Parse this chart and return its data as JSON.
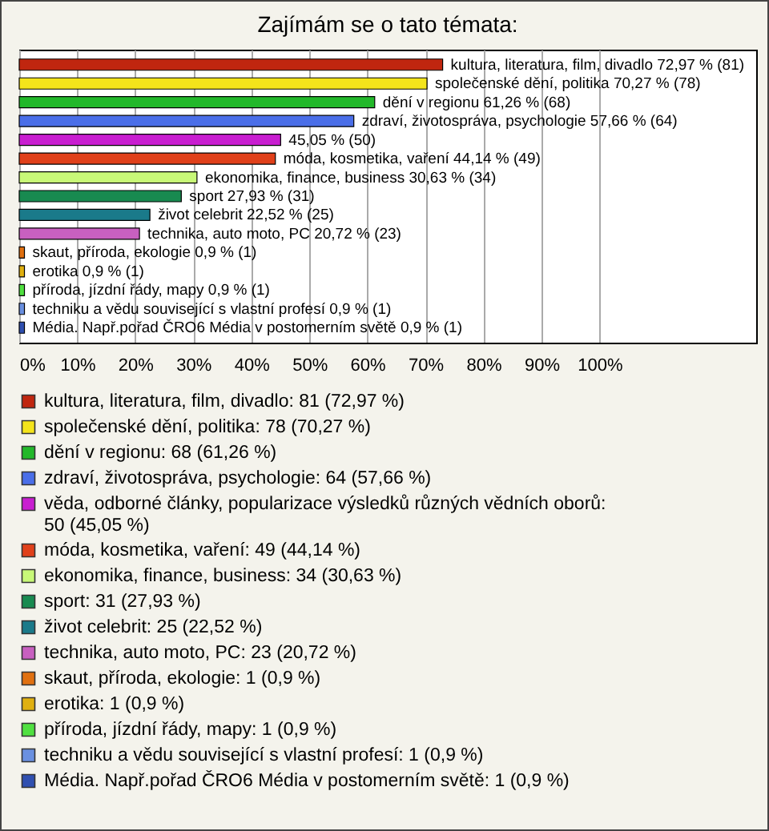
{
  "chart_data": {
    "type": "bar",
    "orientation": "horizontal",
    "stacked": true,
    "title": "Zajímám se o tato témata:",
    "categories": [
      null,
      null,
      null,
      null,
      null,
      null,
      null,
      null,
      null,
      null,
      null,
      null,
      null,
      null,
      null
    ],
    "series": [
      {
        "name": "kultura, literatura, film, divadlo: 81 (72,97 %)",
        "color": "#c0260f",
        "values": [
          72.97,
          null,
          null,
          null,
          null,
          null,
          null,
          null,
          null,
          null,
          null,
          null,
          null,
          null,
          null
        ],
        "value_labels": [
          "kultura, literatura, film, divadlo 72,97 % (81)",
          null,
          null,
          null,
          null,
          null,
          null,
          null,
          null,
          null,
          null,
          null,
          null,
          null,
          null
        ]
      },
      {
        "name": "společenské dění, politika: 78 (70,27 %)",
        "color": "#f4e41b",
        "values": [
          null,
          70.27,
          null,
          null,
          null,
          null,
          null,
          null,
          null,
          null,
          null,
          null,
          null,
          null,
          null
        ],
        "value_labels": [
          null,
          "společenské dění, politika 70,27 % (78)",
          null,
          null,
          null,
          null,
          null,
          null,
          null,
          null,
          null,
          null,
          null,
          null,
          null
        ]
      },
      {
        "name": "dění v regionu: 68 (61,26 %)",
        "color": "#22b82a",
        "values": [
          null,
          null,
          61.26,
          null,
          null,
          null,
          null,
          null,
          null,
          null,
          null,
          null,
          null,
          null,
          null
        ],
        "value_labels": [
          null,
          null,
          "dění v regionu 61,26 % (68)",
          null,
          null,
          null,
          null,
          null,
          null,
          null,
          null,
          null,
          null,
          null,
          null
        ]
      },
      {
        "name": "zdraví, životospráva, psychologie: 64 (57,66 %)",
        "color": "#4a6ee8",
        "values": [
          null,
          null,
          null,
          57.66,
          null,
          null,
          null,
          null,
          null,
          null,
          null,
          null,
          null,
          null,
          null
        ],
        "value_labels": [
          null,
          null,
          null,
          "zdraví, životospráva, psychologie 57,66 % (64)",
          null,
          null,
          null,
          null,
          null,
          null,
          null,
          null,
          null,
          null,
          null
        ]
      },
      {
        "name": "věda, odborné články, popularizace výsledků různých vědních oborů: 50 (45,05 %)",
        "color": "#c81ed0",
        "values": [
          null,
          null,
          null,
          null,
          45.05,
          null,
          null,
          null,
          null,
          null,
          null,
          null,
          null,
          null,
          null
        ],
        "value_labels": [
          null,
          null,
          null,
          null,
          "45,05 % (50)",
          null,
          null,
          null,
          null,
          null,
          null,
          null,
          null,
          null,
          null
        ]
      },
      {
        "name": "móda, kosmetika, vaření: 49 (44,14 %)",
        "color": "#e0401a",
        "values": [
          null,
          null,
          null,
          null,
          null,
          44.14,
          null,
          null,
          null,
          null,
          null,
          null,
          null,
          null,
          null
        ],
        "value_labels": [
          null,
          null,
          null,
          null,
          null,
          "móda, kosmetika, vaření 44,14 % (49)",
          null,
          null,
          null,
          null,
          null,
          null,
          null,
          null,
          null
        ]
      },
      {
        "name": "ekonomika, finance, business: 34 (30,63 %)",
        "color": "#c8f878",
        "values": [
          null,
          null,
          null,
          null,
          null,
          null,
          30.63,
          null,
          null,
          null,
          null,
          null,
          null,
          null,
          null
        ],
        "value_labels": [
          null,
          null,
          null,
          null,
          null,
          null,
          "ekonomika, finance, business 30,63 % (34)",
          null,
          null,
          null,
          null,
          null,
          null,
          null,
          null
        ]
      },
      {
        "name": "sport: 31 (27,93 %)",
        "color": "#188a50",
        "values": [
          null,
          null,
          null,
          null,
          null,
          null,
          null,
          27.93,
          null,
          null,
          null,
          null,
          null,
          null,
          null
        ],
        "value_labels": [
          null,
          null,
          null,
          null,
          null,
          null,
          null,
          "sport 27,93 % (31)",
          null,
          null,
          null,
          null,
          null,
          null,
          null
        ]
      },
      {
        "name": "život celebrit: 25 (22,52 %)",
        "color": "#1a7a8a",
        "values": [
          null,
          null,
          null,
          null,
          null,
          null,
          null,
          null,
          22.52,
          null,
          null,
          null,
          null,
          null,
          null
        ],
        "value_labels": [
          null,
          null,
          null,
          null,
          null,
          null,
          null,
          null,
          "život celebrit 22,52 % (25)",
          null,
          null,
          null,
          null,
          null,
          null
        ]
      },
      {
        "name": "technika, auto moto, PC: 23 (20,72 %)",
        "color": "#c860c0",
        "values": [
          null,
          null,
          null,
          null,
          null,
          null,
          null,
          null,
          null,
          20.72,
          null,
          null,
          null,
          null,
          null
        ],
        "value_labels": [
          null,
          null,
          null,
          null,
          null,
          null,
          null,
          null,
          null,
          "technika, auto moto, PC 20,72 % (23)",
          null,
          null,
          null,
          null,
          null
        ]
      },
      {
        "name": "skaut, příroda, ekologie: 1 (0,9 %)",
        "color": "#e07010",
        "values": [
          null,
          null,
          null,
          null,
          null,
          null,
          null,
          null,
          null,
          null,
          0.9,
          null,
          null,
          null,
          null
        ],
        "value_labels": [
          null,
          null,
          null,
          null,
          null,
          null,
          null,
          null,
          null,
          null,
          "skaut, příroda, ekologie 0,9 % (1)",
          null,
          null,
          null,
          null
        ]
      },
      {
        "name": "erotika: 1 (0,9 %)",
        "color": "#e0b010",
        "values": [
          null,
          null,
          null,
          null,
          null,
          null,
          null,
          null,
          null,
          null,
          null,
          0.9,
          null,
          null,
          null
        ],
        "value_labels": [
          null,
          null,
          null,
          null,
          null,
          null,
          null,
          null,
          null,
          null,
          null,
          "erotika 0,9 % (1)",
          null,
          null,
          null
        ]
      },
      {
        "name": "příroda, jízdní řády, mapy: 1 (0,9 %)",
        "color": "#50e040",
        "values": [
          null,
          null,
          null,
          null,
          null,
          null,
          null,
          null,
          null,
          null,
          null,
          null,
          0.9,
          null,
          null
        ],
        "value_labels": [
          null,
          null,
          null,
          null,
          null,
          null,
          null,
          null,
          null,
          null,
          null,
          null,
          "příroda, jízdní řády, mapy 0,9 % (1)",
          null,
          null
        ]
      },
      {
        "name": "techniku a vědu související s vlastní profesí: 1 (0,9 %)",
        "color": "#6a90e0",
        "values": [
          null,
          null,
          null,
          null,
          null,
          null,
          null,
          null,
          null,
          null,
          null,
          null,
          null,
          0.9,
          null
        ],
        "value_labels": [
          null,
          null,
          null,
          null,
          null,
          null,
          null,
          null,
          null,
          null,
          null,
          null,
          null,
          "techniku a vědu související s vlastní profesí 0,9 % (1)",
          null
        ]
      },
      {
        "name": "Média. Např.pořad ČRO6 Média v postomerním světě: 1 (0,9 %)",
        "color": "#3050b0",
        "values": [
          null,
          null,
          null,
          null,
          null,
          null,
          null,
          null,
          null,
          null,
          null,
          null,
          null,
          null,
          0.9
        ],
        "value_labels": [
          null,
          null,
          null,
          null,
          null,
          null,
          null,
          null,
          null,
          null,
          null,
          null,
          null,
          null,
          "Média. Např.pořad ČRO6 Média v postomerním světě 0,9 % (1)"
        ]
      }
    ],
    "xlim": [
      0,
      127
    ],
    "xticks": [
      {
        "value": 0,
        "label": "0%"
      },
      {
        "value": 10,
        "label": "10%"
      },
      {
        "value": 20,
        "label": "20%"
      },
      {
        "value": 30,
        "label": "30%"
      },
      {
        "value": 40,
        "label": "40%"
      },
      {
        "value": 50,
        "label": "50%"
      },
      {
        "value": 60,
        "label": "60%"
      },
      {
        "value": 70,
        "label": "70%"
      },
      {
        "value": 80,
        "label": "80%"
      },
      {
        "value": 90,
        "label": "90%"
      },
      {
        "value": 100,
        "label": "100%"
      }
    ],
    "grid": "x",
    "legend": "bottom",
    "tick_labels": "x"
  }
}
